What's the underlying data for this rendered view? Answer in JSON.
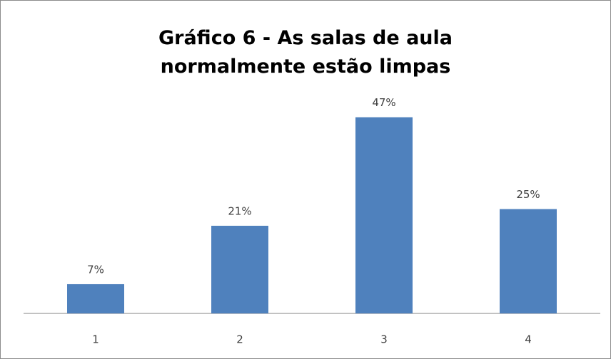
{
  "chart_data": {
    "type": "bar",
    "title": "Gráfico 6 - As salas de aula normalmente estão limpas",
    "categories": [
      "1",
      "2",
      "3",
      "4"
    ],
    "values": [
      7,
      21,
      47,
      25
    ],
    "value_labels": [
      "7%",
      "21%",
      "47%",
      "25%"
    ],
    "color": "#4f81bd",
    "ylim": [
      0,
      50
    ]
  }
}
